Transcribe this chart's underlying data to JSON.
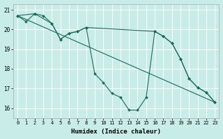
{
  "xlabel": "Humidex (Indice chaleur)",
  "bg_color": "#c8ece8",
  "grid_color": "#ffffff",
  "line_color": "#1a6b5a",
  "xlim": [
    -0.5,
    23.5
  ],
  "ylim": [
    15.5,
    21.3
  ],
  "xticks": [
    0,
    1,
    2,
    3,
    4,
    5,
    6,
    7,
    8,
    9,
    10,
    11,
    12,
    13,
    14,
    15,
    16,
    17,
    18,
    19,
    20,
    21,
    22,
    23
  ],
  "yticks": [
    16,
    17,
    18,
    19,
    20,
    21
  ],
  "series": [
    {
      "x": [
        0,
        1,
        2,
        3,
        4,
        5,
        6,
        7,
        8,
        9,
        10,
        11,
        12,
        13,
        14,
        15,
        16,
        17,
        18,
        19,
        20,
        21,
        22,
        23
      ],
      "y": [
        20.7,
        20.4,
        20.8,
        20.7,
        20.3,
        19.5,
        19.8,
        19.9,
        20.1,
        17.75,
        17.3,
        16.75,
        16.55,
        15.9,
        15.9,
        16.55,
        19.9,
        19.65,
        19.3,
        18.5,
        17.5,
        17.05,
        16.8,
        16.3
      ]
    },
    {
      "x": [
        0,
        23
      ],
      "y": [
        20.7,
        16.3
      ]
    },
    {
      "x": [
        0,
        2,
        4,
        5,
        6,
        7,
        8,
        16,
        17,
        18,
        19,
        20,
        21,
        22,
        23
      ],
      "y": [
        20.7,
        20.8,
        20.3,
        19.5,
        19.8,
        19.9,
        20.1,
        19.9,
        19.65,
        19.3,
        18.5,
        17.5,
        17.05,
        16.8,
        16.3
      ]
    }
  ]
}
